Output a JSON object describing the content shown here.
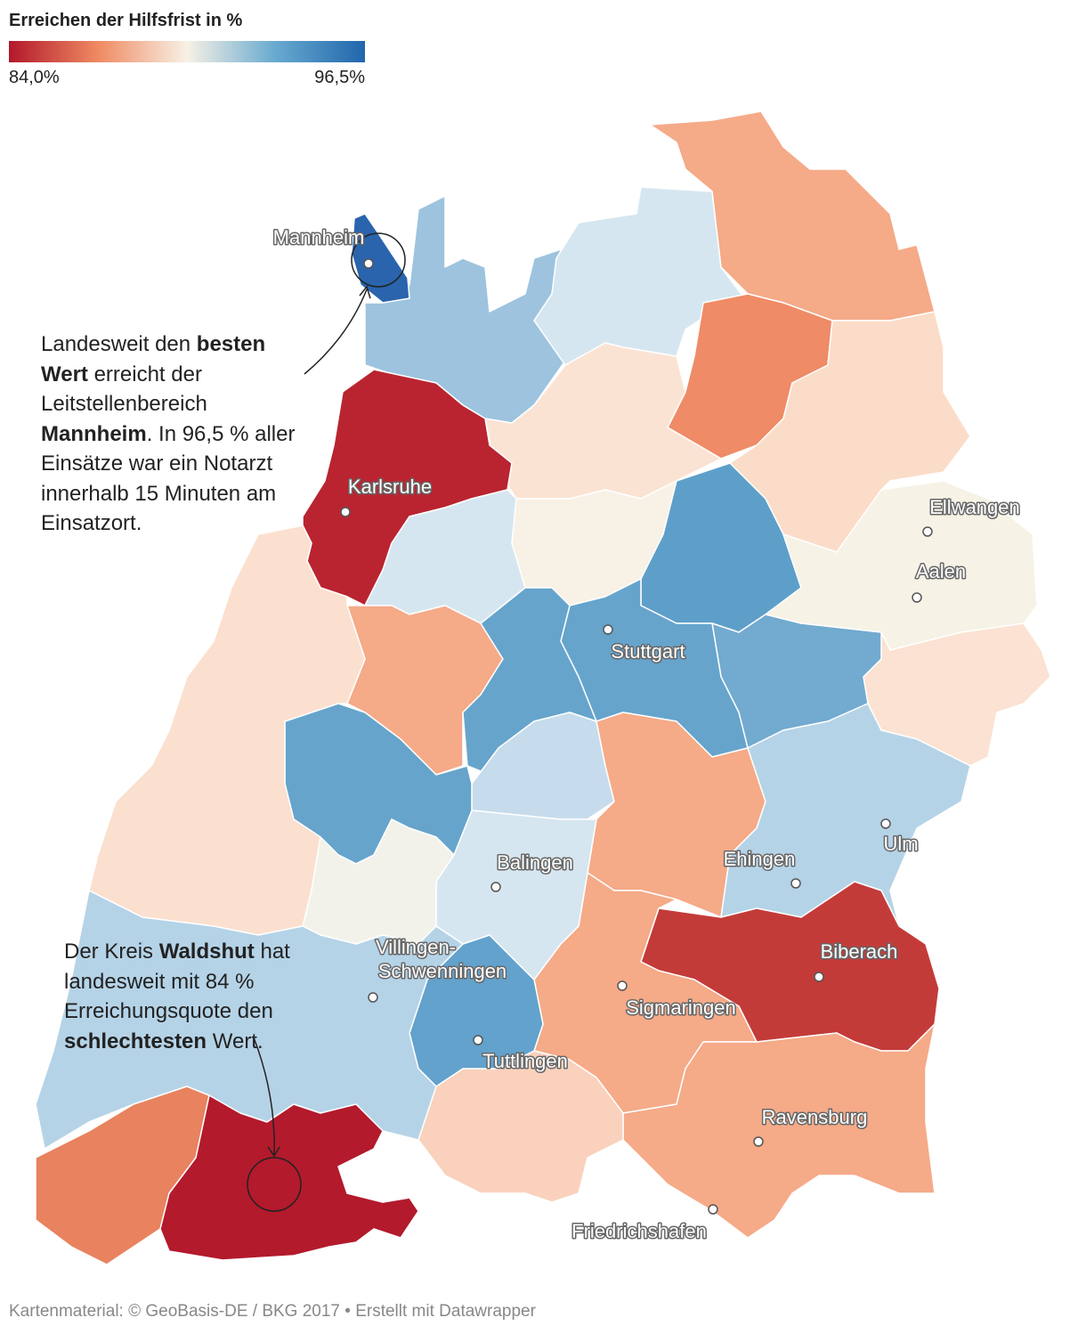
{
  "legend": {
    "title": "Erreichen der Hilfsfrist in %",
    "min_label": "84,0%",
    "max_label": "96,5%"
  },
  "cities": [
    "Mannheim",
    "Karlsruhe",
    "Ellwangen",
    "Aalen",
    "Stuttgart",
    "Ulm",
    "Ehingen",
    "Balingen",
    [
      "Villingen-",
      "Schwenningen"
    ],
    "Tuttlingen",
    "Sigmaringen",
    "Biberach",
    "Ravensburg",
    "Friedrichshafen"
  ],
  "annotations": [
    {
      "runs": [
        {
          "text": "Landesweit den ",
          "bold": false
        },
        {
          "text": "besten Wert",
          "bold": true
        },
        {
          "text": " erreicht der Leitstellenbereich ",
          "bold": false
        },
        {
          "text": "Mannheim",
          "bold": true
        },
        {
          "text": ". In 96,5 % aller Einsätze war ein Notarzt innerhalb 15 Minuten am Einsatzort.",
          "bold": false
        }
      ]
    },
    {
      "runs": [
        {
          "text": "Der Kreis ",
          "bold": false
        },
        {
          "text": "Waldshut",
          "bold": true
        },
        {
          "text": " hat landesweit mit 84 % Erreichungsquote den ",
          "bold": false
        },
        {
          "text": "schlechtesten",
          "bold": true
        },
        {
          "text": " Wert.",
          "bold": false
        }
      ]
    }
  ],
  "footer": "Kartenmaterial: © GeoBasis-DE / BKG 2017 • Erstellt mit Datawrapper"
}
